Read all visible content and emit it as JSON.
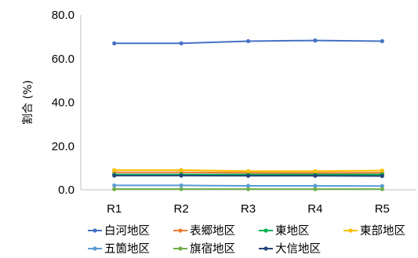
{
  "chart_data": {
    "type": "line",
    "categories": [
      "R1",
      "R2",
      "R3",
      "R4",
      "R5"
    ],
    "ylabel": "割合 (%)",
    "ylim": [
      0,
      80
    ],
    "yticks": [
      "0.0",
      "20.0",
      "40.0",
      "60.0",
      "80.0"
    ],
    "grid": false,
    "legend_position": "bottom",
    "series": [
      {
        "name": "白河地区",
        "color": "#4472C4",
        "values": [
          67.0,
          67.0,
          68.0,
          68.3,
          68.0
        ]
      },
      {
        "name": "表郷地区",
        "color": "#ED7D31",
        "values": [
          8.0,
          8.0,
          7.8,
          7.7,
          7.8
        ]
      },
      {
        "name": "東地区",
        "color": "#00B050",
        "values": [
          7.0,
          7.0,
          7.0,
          7.0,
          7.0
        ]
      },
      {
        "name": "東部地区",
        "color": "#FFC000",
        "values": [
          9.0,
          9.0,
          8.5,
          8.5,
          8.8
        ]
      },
      {
        "name": "五箇地区",
        "color": "#5B9BD5",
        "values": [
          2.0,
          2.0,
          1.8,
          1.8,
          1.7
        ]
      },
      {
        "name": "旗宿地区",
        "color": "#70AD47",
        "values": [
          0.3,
          0.3,
          0.3,
          0.3,
          0.3
        ]
      },
      {
        "name": "大信地区",
        "color": "#264478",
        "values": [
          6.5,
          6.5,
          6.4,
          6.4,
          6.3
        ]
      }
    ]
  }
}
